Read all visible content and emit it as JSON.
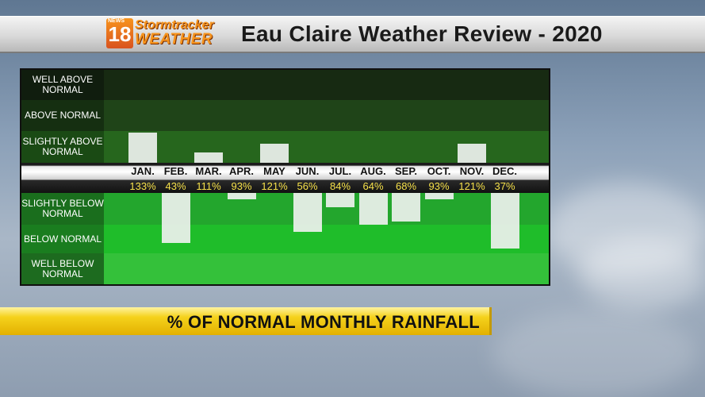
{
  "header": {
    "logo_news": "NEWS",
    "logo_number": "18",
    "logo_line1": "Stormtracker",
    "logo_line2": "WEATHER",
    "title": "Eau Claire Weather Review - 2020"
  },
  "footer": {
    "caption": "% OF NORMAL MONTHLY RAINFALL"
  },
  "colors": {
    "well_above": "#172a12",
    "above": "#1f4418",
    "slightly_above": "#26661d",
    "slightly_below": "#23a62d",
    "below": "#1fbd2a",
    "well_below": "#34c13a",
    "bar": "#ecf0ec",
    "percent_text": "#f5e04a"
  },
  "chart_data": {
    "type": "bar",
    "categories": [
      "JAN.",
      "FEB.",
      "MAR.",
      "APR.",
      "MAY",
      "JUN.",
      "JUL.",
      "AUG.",
      "SEP.",
      "OCT.",
      "NOV.",
      "DEC."
    ],
    "values": [
      133,
      43,
      111,
      93,
      121,
      56,
      84,
      64,
      68,
      93,
      121,
      37
    ],
    "value_labels": [
      "133%",
      "43%",
      "111%",
      "93%",
      "121%",
      "56%",
      "84%",
      "64%",
      "68%",
      "93%",
      "121%",
      "37%"
    ],
    "baseline": 100,
    "categories_bands": [
      "WELL ABOVE NORMAL",
      "ABOVE NORMAL",
      "SLIGHTLY ABOVE NORMAL",
      "SLIGHTLY BELOW NORMAL",
      "BELOW NORMAL",
      "WELL BELOW NORMAL"
    ],
    "title": "% OF NORMAL MONTHLY RAINFALL"
  }
}
